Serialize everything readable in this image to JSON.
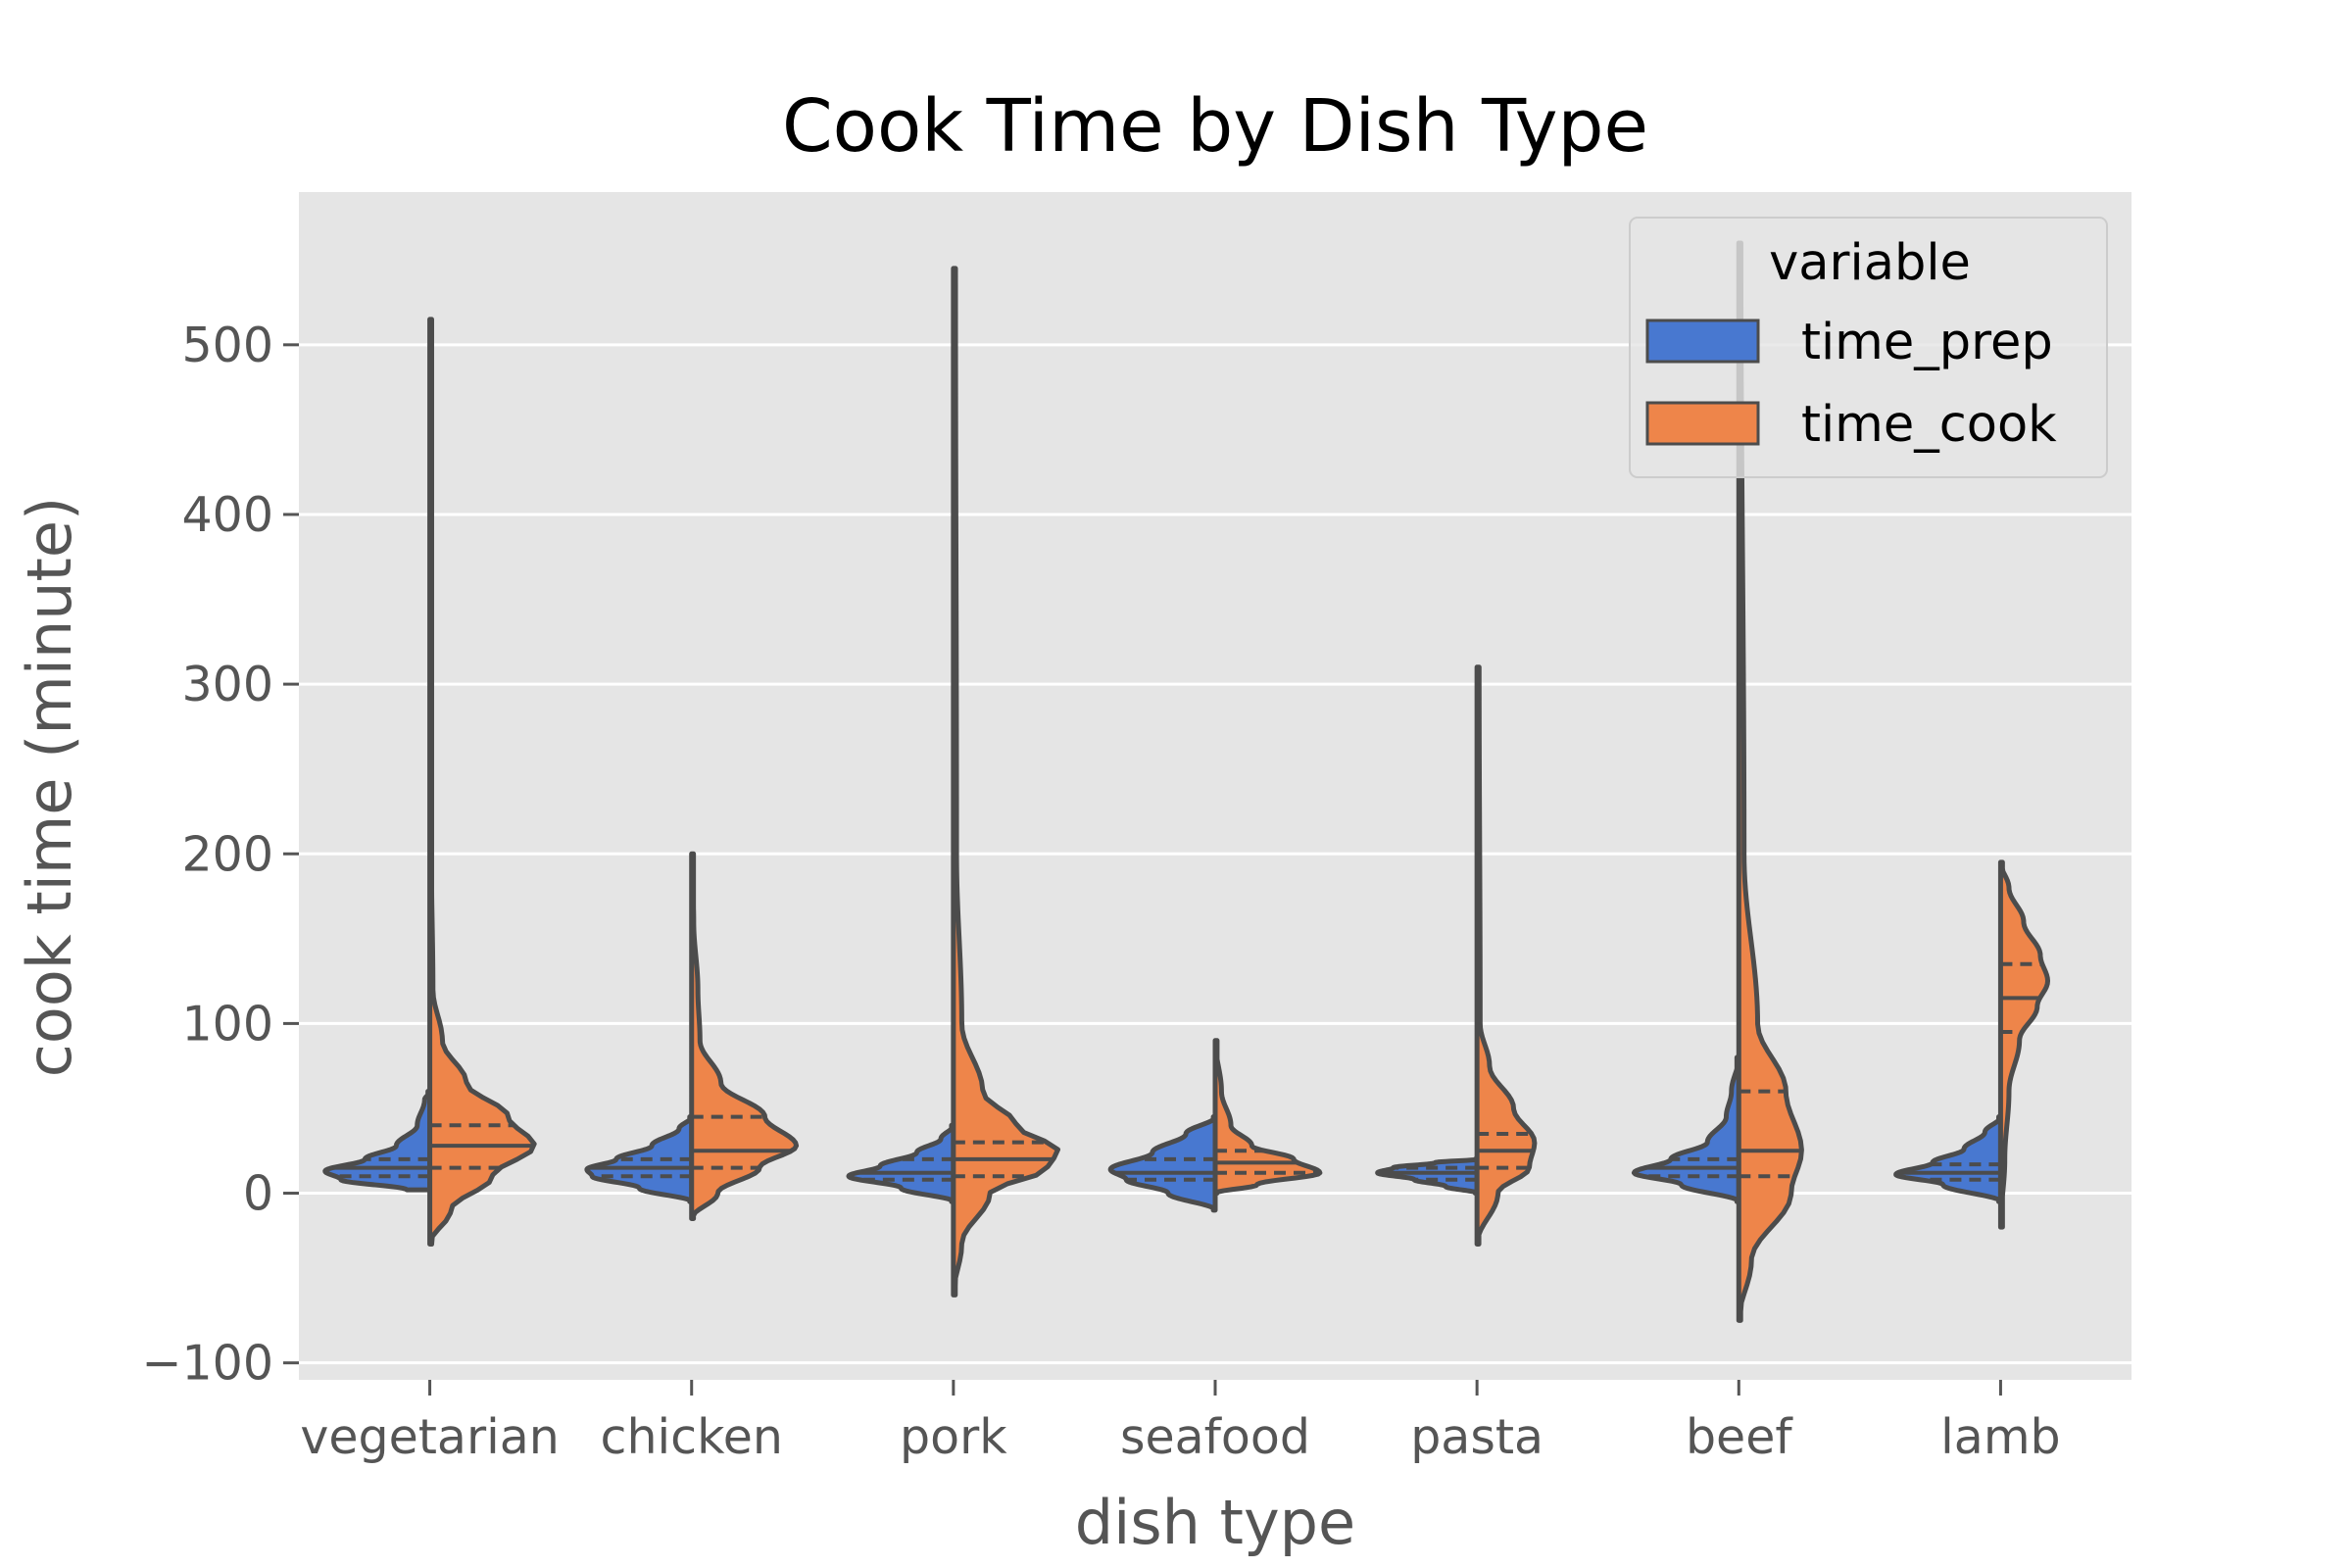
{
  "chart_data": {
    "type": "violin",
    "title": "Cook Time by Dish Type",
    "xlabel": "dish type",
    "ylabel": "cook time (minute)",
    "categories": [
      "vegetarian",
      "chicken",
      "pork",
      "seafood",
      "pasta",
      "beef",
      "lamb"
    ],
    "ylim": [
      -110,
      590
    ],
    "yticks": [
      -100,
      0,
      100,
      200,
      300,
      400,
      500
    ],
    "ytick_labels": [
      "−100",
      "0",
      "100",
      "200",
      "300",
      "400",
      "500"
    ],
    "grid": true,
    "split": true,
    "inner": "quartile",
    "legend": {
      "title": "variable",
      "position": "top-right",
      "entries": [
        {
          "label": "time_prep",
          "color": "#4878d0"
        },
        {
          "label": "time_cook",
          "color": "#ee854a"
        }
      ]
    },
    "series": [
      {
        "name": "time_prep",
        "color": "#4878d0",
        "violins": [
          {
            "min": 2,
            "max": 60,
            "quartiles": [
              10,
              15,
              20
            ],
            "profile": [
              [
                2,
                0.22
              ],
              [
                8,
                0.85
              ],
              [
                13,
                1.0
              ],
              [
                20,
                0.62
              ],
              [
                28,
                0.32
              ],
              [
                40,
                0.12
              ],
              [
                55,
                0.05
              ],
              [
                60,
                0
              ]
            ]
          },
          {
            "min": -5,
            "max": 45,
            "quartiles": [
              10,
              15,
              20
            ],
            "profile": [
              [
                -5,
                0
              ],
              [
                3,
                0.5
              ],
              [
                10,
                0.95
              ],
              [
                14,
                1.0
              ],
              [
                20,
                0.72
              ],
              [
                28,
                0.38
              ],
              [
                38,
                0.12
              ],
              [
                45,
                0
              ]
            ]
          },
          {
            "min": -5,
            "max": 40,
            "quartiles": [
              8,
              12,
              20
            ],
            "profile": [
              [
                -5,
                0
              ],
              [
                3,
                0.5
              ],
              [
                10,
                1.0
              ],
              [
                16,
                0.7
              ],
              [
                24,
                0.35
              ],
              [
                32,
                0.12
              ],
              [
                40,
                0
              ]
            ]
          },
          {
            "min": -10,
            "max": 45,
            "quartiles": [
              8,
              12,
              20
            ],
            "profile": [
              [
                -10,
                0
              ],
              [
                0,
                0.45
              ],
              [
                8,
                0.85
              ],
              [
                14,
                1.0
              ],
              [
                24,
                0.6
              ],
              [
                35,
                0.28
              ],
              [
                45,
                0
              ]
            ]
          },
          {
            "min": 0,
            "max": 20,
            "quartiles": [
              8,
              12,
              15
            ],
            "profile": [
              [
                0,
                0
              ],
              [
                4,
                0.3
              ],
              [
                8,
                0.6
              ],
              [
                12,
                0.95
              ],
              [
                15,
                0.8
              ],
              [
                18,
                0.4
              ],
              [
                20,
                0
              ]
            ]
          },
          {
            "min": -5,
            "max": 80,
            "quartiles": [
              10,
              15,
              20
            ],
            "profile": [
              [
                -5,
                0
              ],
              [
                5,
                0.55
              ],
              [
                12,
                1.0
              ],
              [
                20,
                0.65
              ],
              [
                30,
                0.3
              ],
              [
                45,
                0.12
              ],
              [
                60,
                0.07
              ],
              [
                80,
                0
              ]
            ]
          },
          {
            "min": -5,
            "max": 45,
            "quartiles": [
              8,
              12,
              17
            ],
            "profile": [
              [
                -5,
                0
              ],
              [
                5,
                0.55
              ],
              [
                11,
                1.0
              ],
              [
                18,
                0.65
              ],
              [
                26,
                0.35
              ],
              [
                36,
                0.15
              ],
              [
                45,
                0
              ]
            ]
          }
        ]
      },
      {
        "name": "time_cook",
        "color": "#ee854a",
        "violins": [
          {
            "min": -30,
            "max": 515,
            "quartiles": [
              15,
              28,
              40
            ],
            "profile": [
              [
                -30,
                0
              ],
              [
                -10,
                0.2
              ],
              [
                10,
                0.6
              ],
              [
                28,
                1.0
              ],
              [
                45,
                0.75
              ],
              [
                65,
                0.35
              ],
              [
                90,
                0.12
              ],
              [
                120,
                0.03
              ],
              [
                200,
                0.015
              ],
              [
                515,
                0.01
              ]
            ]
          },
          {
            "min": -15,
            "max": 200,
            "quartiles": [
              15,
              25,
              45
            ],
            "profile": [
              [
                -15,
                0
              ],
              [
                0,
                0.25
              ],
              [
                15,
                0.65
              ],
              [
                28,
                1.0
              ],
              [
                45,
                0.7
              ],
              [
                65,
                0.28
              ],
              [
                90,
                0.08
              ],
              [
                120,
                0.06
              ],
              [
                160,
                0.02
              ],
              [
                200,
                0
              ]
            ]
          },
          {
            "min": -60,
            "max": 545,
            "quartiles": [
              10,
              20,
              30
            ],
            "profile": [
              [
                -60,
                0
              ],
              [
                -30,
                0.08
              ],
              [
                0,
                0.35
              ],
              [
                15,
                0.9
              ],
              [
                25,
                1.0
              ],
              [
                40,
                0.6
              ],
              [
                60,
                0.28
              ],
              [
                100,
                0.08
              ],
              [
                200,
                0.03
              ],
              [
                545,
                0.02
              ]
            ]
          },
          {
            "min": 0,
            "max": 90,
            "quartiles": [
              12,
              18,
              25
            ],
            "profile": [
              [
                0,
                0
              ],
              [
                5,
                0.4
              ],
              [
                12,
                1.0
              ],
              [
                20,
                0.75
              ],
              [
                28,
                0.35
              ],
              [
                40,
                0.15
              ],
              [
                60,
                0.06
              ],
              [
                90,
                0
              ]
            ]
          },
          {
            "min": -30,
            "max": 310,
            "quartiles": [
              15,
              25,
              35
            ],
            "profile": [
              [
                -30,
                0
              ],
              [
                0,
                0.2
              ],
              [
                15,
                0.5
              ],
              [
                30,
                0.55
              ],
              [
                50,
                0.35
              ],
              [
                75,
                0.12
              ],
              [
                100,
                0.03
              ],
              [
                310,
                0.02
              ]
            ]
          },
          {
            "min": -75,
            "max": 560,
            "quartiles": [
              10,
              25,
              60
            ],
            "profile": [
              [
                -75,
                0
              ],
              [
                -40,
                0.12
              ],
              [
                0,
                0.5
              ],
              [
                25,
                0.6
              ],
              [
                60,
                0.45
              ],
              [
                100,
                0.18
              ],
              [
                200,
                0.05
              ],
              [
                560,
                0.02
              ]
            ]
          },
          {
            "min": -20,
            "max": 195,
            "quartiles": [
              95,
              115,
              135
            ],
            "profile": [
              [
                -20,
                0
              ],
              [
                20,
                0.04
              ],
              [
                60,
                0.08
              ],
              [
                90,
                0.18
              ],
              [
                110,
                0.35
              ],
              [
                125,
                0.45
              ],
              [
                140,
                0.38
              ],
              [
                160,
                0.22
              ],
              [
                180,
                0.08
              ],
              [
                195,
                0
              ]
            ]
          }
        ]
      }
    ]
  }
}
